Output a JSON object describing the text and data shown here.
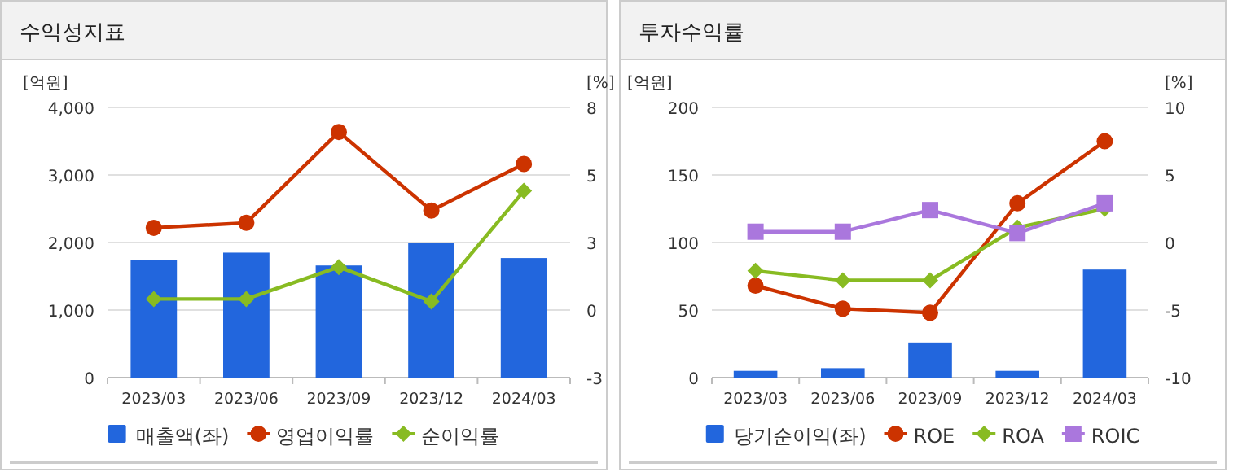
{
  "chart_data": [
    {
      "type": "bar",
      "title": "수익성지표",
      "ylabel": "[억원]",
      "y2label": "[%]",
      "categories": [
        "2023/03",
        "2023/06",
        "2023/09",
        "2023/12",
        "2024/03"
      ],
      "ylim": [
        0,
        4000
      ],
      "yticks": [
        {
          "value": 0,
          "label": "0"
        },
        {
          "value": 1000,
          "label": "1,000"
        },
        {
          "value": 2000,
          "label": "2,000"
        },
        {
          "value": 3000,
          "label": "3,000"
        },
        {
          "value": 4000,
          "label": "4,000"
        }
      ],
      "y2lim": [
        -3,
        8
      ],
      "y2ticks": [
        -3,
        {
          "value": -0.25,
          "label": "0"
        },
        {
          "value": 2.5,
          "label": "3"
        },
        {
          "value": 5.25,
          "label": "5"
        },
        8
      ],
      "grid": "y",
      "legend": "bottom",
      "series": [
        {
          "name": "매출액(좌)",
          "type": "bar",
          "color": "#2266dd",
          "values": [
            1740,
            1850,
            1660,
            1990,
            1770
          ]
        },
        {
          "name": "영업이익률",
          "type": "line",
          "axis": "y2",
          "marker": "circle",
          "color": "#cc3300",
          "values": [
            3.1,
            3.3,
            7.0,
            3.8,
            5.7
          ]
        },
        {
          "name": "순이익률",
          "type": "line",
          "axis": "y2",
          "marker": "diamond",
          "color": "#88bb22",
          "values": [
            0.2,
            0.2,
            1.5,
            0.1,
            4.6
          ]
        }
      ]
    },
    {
      "type": "bar",
      "title": "투자수익률",
      "ylabel": "[억원]",
      "y2label": "[%]",
      "categories": [
        "2023/03",
        "2023/06",
        "2023/09",
        "2023/12",
        "2024/03"
      ],
      "ylim": [
        0,
        200
      ],
      "yticks": [
        0,
        50,
        100,
        150,
        200
      ],
      "y2lim": [
        -10,
        10
      ],
      "y2ticks": [
        -10,
        -5,
        0,
        5,
        10
      ],
      "grid": "y",
      "legend": "bottom",
      "series": [
        {
          "name": "당기순이익(좌)",
          "type": "bar",
          "color": "#2266dd",
          "values": [
            5,
            7,
            26,
            5,
            80
          ]
        },
        {
          "name": "ROE",
          "type": "line",
          "axis": "y2",
          "marker": "circle",
          "color": "#cc3300",
          "values": [
            -3.2,
            -4.9,
            -5.2,
            2.9,
            7.5
          ]
        },
        {
          "name": "ROA",
          "type": "line",
          "axis": "y2",
          "marker": "diamond",
          "color": "#88bb22",
          "values": [
            -2.1,
            -2.8,
            -2.8,
            1.1,
            2.5
          ]
        },
        {
          "name": "ROIC",
          "type": "line",
          "axis": "y2",
          "marker": "square",
          "color": "#aa77dd",
          "values": [
            0.8,
            0.8,
            2.4,
            0.7,
            2.9
          ]
        }
      ]
    }
  ]
}
